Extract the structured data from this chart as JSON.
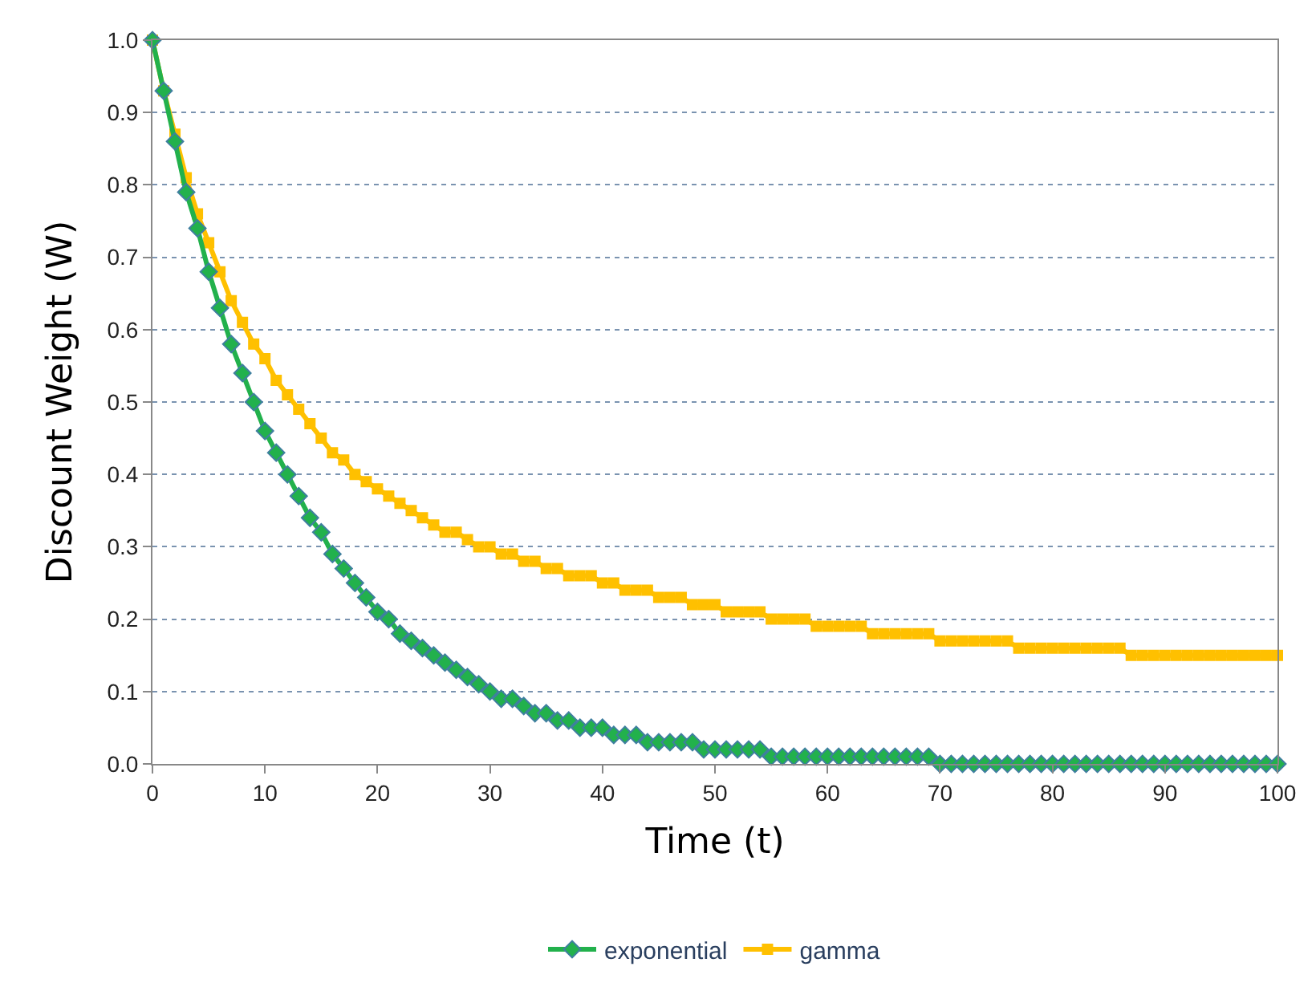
{
  "chart_data": {
    "type": "line",
    "xlabel": "Time (t)",
    "ylabel": "Discount Weight (W)",
    "x": [
      0,
      1,
      2,
      3,
      4,
      5,
      6,
      7,
      8,
      9,
      10,
      11,
      12,
      13,
      14,
      15,
      16,
      17,
      18,
      19,
      20,
      21,
      22,
      23,
      24,
      25,
      26,
      27,
      28,
      29,
      30,
      31,
      32,
      33,
      34,
      35,
      36,
      37,
      38,
      39,
      40,
      41,
      42,
      43,
      44,
      45,
      46,
      47,
      48,
      49,
      50,
      51,
      52,
      53,
      54,
      55,
      56,
      57,
      58,
      59,
      60,
      61,
      62,
      63,
      64,
      65,
      66,
      67,
      68,
      69,
      70,
      71,
      72,
      73,
      74,
      75,
      76,
      77,
      78,
      79,
      80,
      81,
      82,
      83,
      84,
      85,
      86,
      87,
      88,
      89,
      90,
      91,
      92,
      93,
      94,
      95,
      96,
      97,
      98,
      99,
      100
    ],
    "series": [
      {
        "name": "exponential",
        "color": "#22b14c",
        "marker": "diamond",
        "values": [
          1.0,
          0.93,
          0.86,
          0.79,
          0.74,
          0.68,
          0.63,
          0.58,
          0.54,
          0.5,
          0.46,
          0.43,
          0.4,
          0.37,
          0.34,
          0.32,
          0.29,
          0.27,
          0.25,
          0.23,
          0.21,
          0.2,
          0.18,
          0.17,
          0.16,
          0.15,
          0.14,
          0.13,
          0.12,
          0.11,
          0.1,
          0.09,
          0.09,
          0.08,
          0.07,
          0.07,
          0.06,
          0.06,
          0.05,
          0.05,
          0.05,
          0.04,
          0.04,
          0.04,
          0.03,
          0.03,
          0.03,
          0.03,
          0.03,
          0.02,
          0.02,
          0.02,
          0.02,
          0.02,
          0.02,
          0.01,
          0.01,
          0.01,
          0.01,
          0.01,
          0.01,
          0.01,
          0.01,
          0.01,
          0.01,
          0.01,
          0.01,
          0.01,
          0.01,
          0.01,
          0.0,
          0.0,
          0.0,
          0.0,
          0.0,
          0.0,
          0.0,
          0.0,
          0.0,
          0.0,
          0.0,
          0.0,
          0.0,
          0.0,
          0.0,
          0.0,
          0.0,
          0.0,
          0.0,
          0.0,
          0.0,
          0.0,
          0.0,
          0.0,
          0.0,
          0.0,
          0.0,
          0.0,
          0.0,
          0.0,
          0.0
        ]
      },
      {
        "name": "gamma",
        "color": "#ffc000",
        "marker": "square",
        "values": [
          1.0,
          0.93,
          0.87,
          0.81,
          0.76,
          0.72,
          0.68,
          0.64,
          0.61,
          0.58,
          0.56,
          0.53,
          0.51,
          0.49,
          0.47,
          0.45,
          0.43,
          0.42,
          0.4,
          0.39,
          0.38,
          0.37,
          0.36,
          0.35,
          0.34,
          0.33,
          0.32,
          0.32,
          0.31,
          0.3,
          0.3,
          0.29,
          0.29,
          0.28,
          0.28,
          0.27,
          0.27,
          0.26,
          0.26,
          0.26,
          0.25,
          0.25,
          0.24,
          0.24,
          0.24,
          0.23,
          0.23,
          0.23,
          0.22,
          0.22,
          0.22,
          0.21,
          0.21,
          0.21,
          0.21,
          0.2,
          0.2,
          0.2,
          0.2,
          0.19,
          0.19,
          0.19,
          0.19,
          0.19,
          0.18,
          0.18,
          0.18,
          0.18,
          0.18,
          0.18,
          0.17,
          0.17,
          0.17,
          0.17,
          0.17,
          0.17,
          0.17,
          0.16,
          0.16,
          0.16,
          0.16,
          0.16,
          0.16,
          0.16,
          0.16,
          0.16,
          0.16,
          0.15,
          0.15,
          0.15,
          0.15,
          0.15,
          0.15,
          0.15,
          0.15,
          0.15,
          0.15,
          0.15,
          0.15,
          0.15,
          0.15
        ]
      }
    ],
    "xlim": [
      0,
      100
    ],
    "xticks": [
      0,
      10,
      20,
      30,
      40,
      50,
      60,
      70,
      80,
      90,
      100
    ],
    "ylim": [
      0,
      1.0
    ],
    "yticks": [
      {
        "value": 0,
        "label": "0.0"
      },
      {
        "value": 0.1,
        "label": "0.1"
      },
      {
        "value": 0.2,
        "label": "0.2"
      },
      {
        "value": 0.3,
        "label": "0.3"
      },
      {
        "value": 0.4,
        "label": "0.4"
      },
      {
        "value": 0.5,
        "label": "0.5"
      },
      {
        "value": 0.6,
        "label": "0.6"
      },
      {
        "value": 0.7,
        "label": "0.7"
      },
      {
        "value": 0.8,
        "label": "0.8"
      },
      {
        "value": 0.9,
        "label": "0.9"
      },
      {
        "value": 1.0,
        "label": "1.0"
      }
    ],
    "grid": "y",
    "legend": "bottom",
    "line_style": "solid"
  }
}
